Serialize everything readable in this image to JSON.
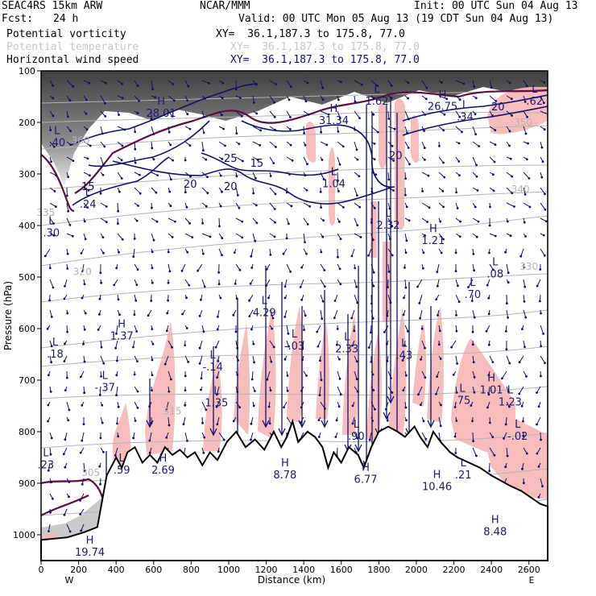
{
  "header": {
    "model": "SEAC4RS 15km ARW",
    "org": "NCAR/MMM",
    "init": "Init: 00 UTC Sun 04 Aug 13",
    "fcst_label": "Fcst:",
    "fcst_value": "24 h",
    "valid": "Valid: 00 UTC Mon 05 Aug 13 (19 CDT Sun 04 Aug 13)",
    "fields": [
      {
        "name": "Potential vorticity",
        "xy": "XY=  36.1,187.3 to 175.8, 77.0",
        "color": "#000000"
      },
      {
        "name": "Potential temperature",
        "xy": "XY=  36.1,187.3 to 175.8, 77.0",
        "color": "#c8c8c8"
      },
      {
        "name": "Horizontal wind speed",
        "xy": "XY=  36.1,187.3 to 175.8, 77.0",
        "color": "#10106a"
      }
    ]
  },
  "chart_data": {
    "type": "cross-section",
    "xlabel": "Distance (km)",
    "ylabel": "Pressure (hPa)",
    "xlim": [
      0,
      2700
    ],
    "ylim": [
      1050,
      100
    ],
    "x_ticks": [
      0,
      200,
      400,
      600,
      800,
      1000,
      1200,
      1400,
      1600,
      1800,
      2000,
      2200,
      2400,
      2600
    ],
    "y_ticks": [
      100,
      200,
      300,
      400,
      500,
      600,
      700,
      800,
      900,
      1000
    ],
    "x_end_labels": {
      "left": "W",
      "right": "E"
    },
    "terrain": [
      [
        0,
        1010
      ],
      [
        140,
        1005
      ],
      [
        230,
        995
      ],
      [
        300,
        985
      ],
      [
        350,
        885
      ],
      [
        400,
        850
      ],
      [
        430,
        870
      ],
      [
        460,
        840
      ],
      [
        500,
        830
      ],
      [
        540,
        860
      ],
      [
        580,
        845
      ],
      [
        620,
        860
      ],
      [
        660,
        830
      ],
      [
        700,
        845
      ],
      [
        740,
        835
      ],
      [
        780,
        850
      ],
      [
        820,
        840
      ],
      [
        860,
        865
      ],
      [
        900,
        840
      ],
      [
        940,
        855
      ],
      [
        990,
        820
      ],
      [
        1040,
        800
      ],
      [
        1090,
        830
      ],
      [
        1140,
        815
      ],
      [
        1190,
        835
      ],
      [
        1240,
        800
      ],
      [
        1280,
        830
      ],
      [
        1310,
        810
      ],
      [
        1340,
        780
      ],
      [
        1370,
        820
      ],
      [
        1420,
        800
      ],
      [
        1460,
        810
      ],
      [
        1500,
        830
      ],
      [
        1530,
        870
      ],
      [
        1560,
        840
      ],
      [
        1600,
        860
      ],
      [
        1640,
        830
      ],
      [
        1690,
        845
      ],
      [
        1720,
        870
      ],
      [
        1760,
        830
      ],
      [
        1800,
        800
      ],
      [
        1850,
        790
      ],
      [
        1900,
        800
      ],
      [
        1940,
        810
      ],
      [
        1990,
        790
      ],
      [
        2020,
        810
      ],
      [
        2060,
        830
      ],
      [
        2090,
        800
      ],
      [
        2130,
        820
      ],
      [
        2180,
        840
      ],
      [
        2220,
        850
      ],
      [
        2280,
        860
      ],
      [
        2340,
        870
      ],
      [
        2400,
        885
      ],
      [
        2450,
        895
      ],
      [
        2500,
        905
      ],
      [
        2560,
        915
      ],
      [
        2620,
        930
      ],
      [
        2660,
        940
      ],
      [
        2700,
        945
      ]
    ],
    "theta_contours": [
      {
        "label": "305",
        "x": 265,
        "p": 880
      },
      {
        "label": "315",
        "x": 700,
        "p": 760
      },
      {
        "label": "320",
        "x": 220,
        "p": 490
      },
      {
        "label": "330",
        "x": 2600,
        "p": 480
      },
      {
        "label": "335",
        "x": 25,
        "p": 375
      },
      {
        "label": "340",
        "x": 2555,
        "p": 330
      },
      {
        "label": "350",
        "x": 2570,
        "p": 200
      },
      {
        "label": "360",
        "x": 210,
        "p": 235
      }
    ],
    "wind_speed_contours": [
      {
        "label": "15",
        "x": 250,
        "p": 325
      },
      {
        "label": "20",
        "x": 795,
        "p": 320
      },
      {
        "label": "20",
        "x": 1010,
        "p": 325
      },
      {
        "label": "25",
        "x": 1010,
        "p": 270
      },
      {
        "label": "15",
        "x": 1150,
        "p": 280
      },
      {
        "label": "20",
        "x": 1890,
        "p": 265
      },
      {
        "label": "20",
        "x": 2435,
        "p": 170
      }
    ],
    "extrema": [
      {
        "type": "H",
        "value": "28.01",
        "x": 640,
        "p": 178
      },
      {
        "type": "H",
        "value": "31.34",
        "x": 1560,
        "p": 192
      },
      {
        "type": "L",
        "value": "1.62",
        "x": 1790,
        "p": 155
      },
      {
        "type": "H",
        "value": "26.75",
        "x": 2140,
        "p": 165
      },
      {
        "type": "L",
        "value": ".34",
        "x": 2260,
        "p": 185
      },
      {
        "type": "L",
        "value": ".62",
        "x": 2630,
        "p": 155
      },
      {
        "type": "L",
        "value": ".40",
        "x": 85,
        "p": 235
      },
      {
        "type": "L",
        "value": ".24",
        "x": 250,
        "p": 355
      },
      {
        "type": "L",
        "value": ".30",
        "x": 55,
        "p": 410
      },
      {
        "type": "L",
        "value": "1.04",
        "x": 1560,
        "p": 315
      },
      {
        "type": "L",
        "value": "2.32",
        "x": 1850,
        "p": 395
      },
      {
        "type": "H",
        "value": "1.21",
        "x": 2090,
        "p": 425
      },
      {
        "type": "L",
        "value": ".08",
        "x": 2420,
        "p": 490
      },
      {
        "type": "L",
        "value": ".70",
        "x": 2300,
        "p": 530
      },
      {
        "type": "H",
        "value": "1.37",
        "x": 430,
        "p": 610
      },
      {
        "type": "L",
        "value": "4.29",
        "x": 1190,
        "p": 565
      },
      {
        "type": "L",
        "value": "-.03",
        "x": 1350,
        "p": 630
      },
      {
        "type": "L",
        "value": "2.33",
        "x": 1630,
        "p": 635
      },
      {
        "type": "L",
        "value": ".43",
        "x": 1935,
        "p": 648
      },
      {
        "type": "L",
        "value": ".18",
        "x": 75,
        "p": 645
      },
      {
        "type": "L",
        "value": "-.14",
        "x": 915,
        "p": 670
      },
      {
        "type": "L",
        "value": "-.37",
        "x": 340,
        "p": 710
      },
      {
        "type": "L",
        "value": "1.35",
        "x": 935,
        "p": 740
      },
      {
        "type": "L",
        "value": ".75",
        "x": 2245,
        "p": 735
      },
      {
        "type": "H",
        "value": "1.01",
        "x": 2400,
        "p": 715
      },
      {
        "type": "L",
        "value": "1.23",
        "x": 2500,
        "p": 738
      },
      {
        "type": "L",
        "value": ".90",
        "x": 1680,
        "p": 805
      },
      {
        "type": "L",
        "value": "-.02",
        "x": 2540,
        "p": 805
      },
      {
        "type": "L",
        "value": ".59",
        "x": 430,
        "p": 870
      },
      {
        "type": "H",
        "value": "2.69",
        "x": 650,
        "p": 870
      },
      {
        "type": "H",
        "value": "8.78",
        "x": 1300,
        "p": 880
      },
      {
        "type": "H",
        "value": "6.77",
        "x": 1730,
        "p": 888
      },
      {
        "type": "H",
        "value": "10.46",
        "x": 2110,
        "p": 902
      },
      {
        "type": "L",
        "value": ".23",
        "x": 25,
        "p": 860
      },
      {
        "type": "L",
        "value": ".21",
        "x": 2250,
        "p": 880
      },
      {
        "type": "H",
        "value": "8.48",
        "x": 2420,
        "p": 990
      },
      {
        "type": "H",
        "value": "19.74",
        "x": 260,
        "p": 1030
      }
    ]
  }
}
